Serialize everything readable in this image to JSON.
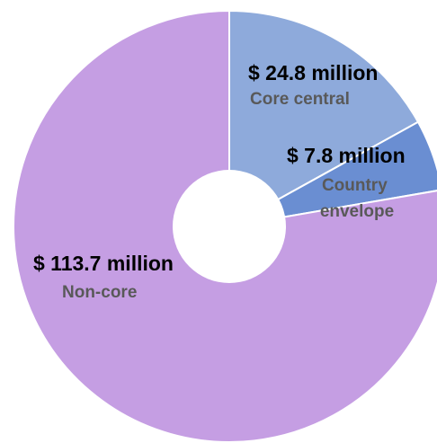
{
  "chart_data": {
    "type": "pie",
    "title": "",
    "slices": [
      {
        "category": "Core central",
        "value": 24.8,
        "label": "$ 24.8 million",
        "color": "#8eaadb"
      },
      {
        "category": "Country envelope",
        "value": 7.8,
        "label": "$ 7.8 million",
        "color": "#6a8ed2"
      },
      {
        "category": "Non-core",
        "value": 113.7,
        "label": "$ 113.7 million",
        "color": "#c59ee3"
      }
    ],
    "center_hole_color": "#ffffff",
    "slice_border_color": "#ffffff",
    "legend": "none"
  }
}
